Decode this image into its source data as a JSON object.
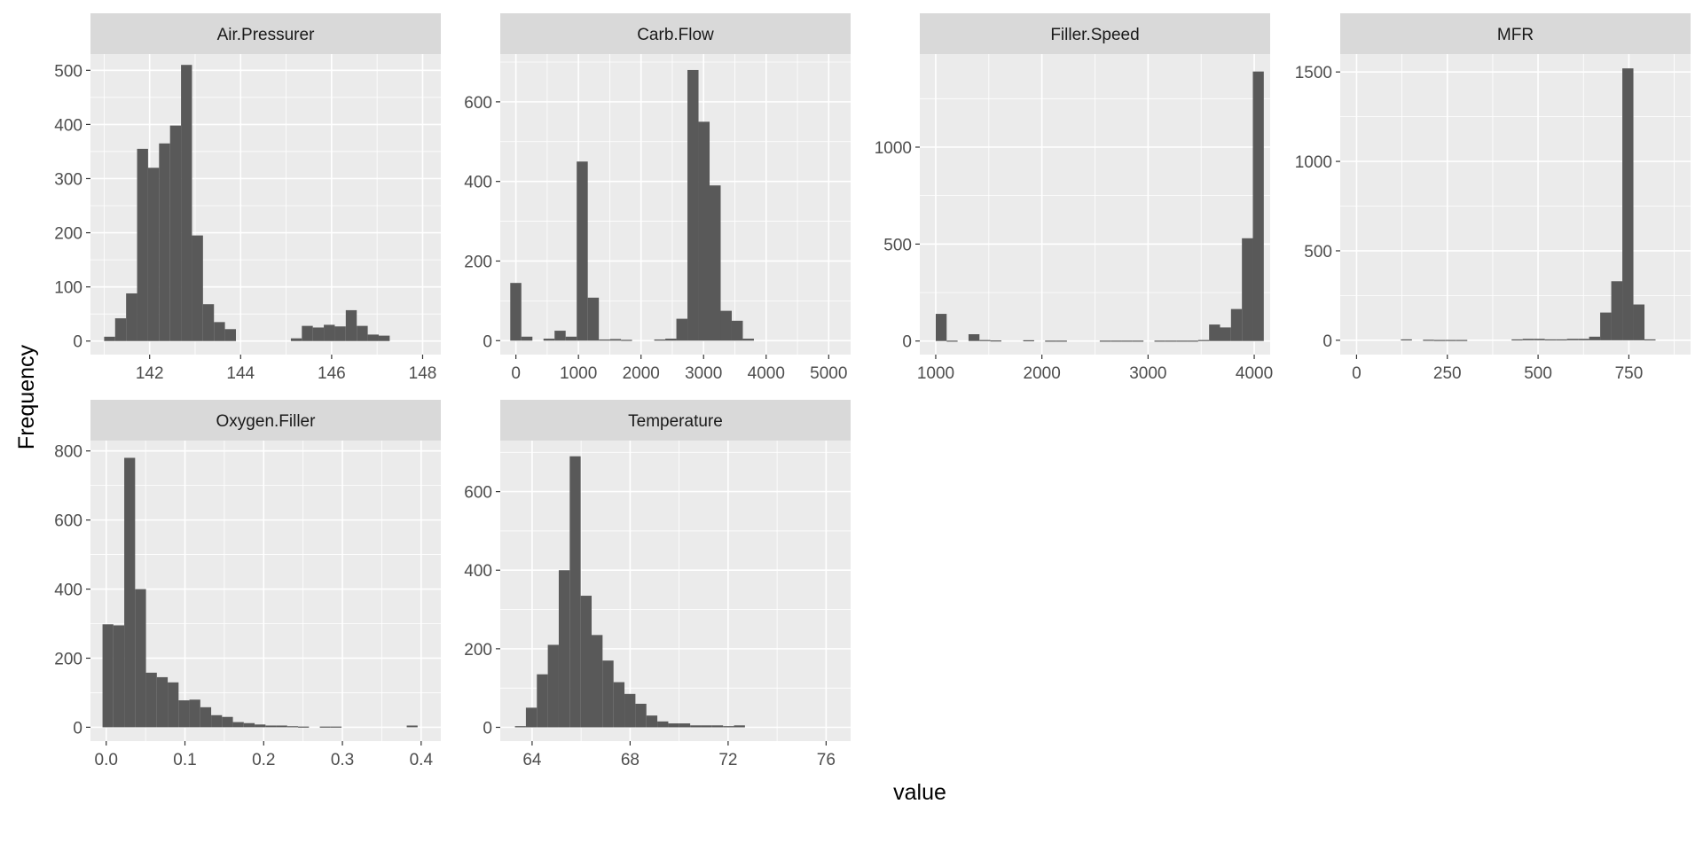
{
  "chart_data": {
    "type": "bar",
    "kind": "faceted-histogram",
    "xlabel": "value",
    "ylabel": "Frequency",
    "colors": {
      "panel_bg": "#ebebeb",
      "strip_bg": "#d9d9d9",
      "grid": "#ffffff",
      "bar": "#595959"
    },
    "facets": [
      {
        "title": "Air.Pressurer",
        "xlim": [
          140.7,
          148.4
        ],
        "ylim": [
          -25,
          530
        ],
        "xticks": [
          142,
          144,
          146,
          148
        ],
        "xtick_labels": [
          "142",
          "144",
          "146",
          "148"
        ],
        "xminor": [
          141,
          143,
          145,
          147
        ],
        "yticks": [
          0,
          100,
          200,
          300,
          400,
          500
        ],
        "ytick_labels": [
          "0",
          "100",
          "200",
          "300",
          "400",
          "500"
        ],
        "yminor": [
          50,
          150,
          250,
          350,
          450
        ],
        "bin_start": 141.0,
        "bin_width": 0.2414,
        "counts": [
          8,
          42,
          88,
          355,
          320,
          365,
          398,
          510,
          195,
          68,
          35,
          22,
          0,
          0,
          0,
          0,
          0,
          5,
          28,
          25,
          30,
          27,
          57,
          28,
          12,
          10
        ]
      },
      {
        "title": "Carb.Flow",
        "xlim": [
          -250,
          5350
        ],
        "ylim": [
          -35,
          720
        ],
        "xticks": [
          0,
          1000,
          2000,
          3000,
          4000,
          5000
        ],
        "xtick_labels": [
          "0",
          "1000",
          "2000",
          "3000",
          "4000",
          "5000"
        ],
        "xminor": [
          500,
          1500,
          2500,
          3500,
          4500
        ],
        "yticks": [
          0,
          200,
          400,
          600
        ],
        "ytick_labels": [
          "0",
          "200",
          "400",
          "600"
        ],
        "yminor": [
          100,
          300,
          500,
          700
        ],
        "bin_start": -90,
        "bin_width": 177,
        "counts": [
          145,
          10,
          0,
          5,
          25,
          10,
          450,
          108,
          3,
          4,
          2,
          0,
          0,
          3,
          5,
          55,
          680,
          550,
          390,
          75,
          50,
          5
        ]
      },
      {
        "title": "Filler.Speed",
        "xlim": [
          850,
          4150
        ],
        "ylim": [
          -70,
          1480
        ],
        "xticks": [
          1000,
          2000,
          3000,
          4000
        ],
        "xtick_labels": [
          "1000",
          "2000",
          "3000",
          "4000"
        ],
        "xminor": [
          1500,
          2500,
          3500
        ],
        "yticks": [
          0,
          500,
          1000
        ],
        "ytick_labels": [
          "0",
          "500",
          "1000"
        ],
        "yminor": [
          250,
          750,
          1250
        ],
        "bin_start": 1000,
        "bin_width": 103,
        "counts": [
          140,
          2,
          0,
          35,
          5,
          3,
          0,
          0,
          4,
          0,
          2,
          2,
          0,
          0,
          0,
          2,
          2,
          2,
          2,
          0,
          2,
          2,
          2,
          2,
          5,
          85,
          70,
          165,
          530,
          1390
        ]
      },
      {
        "title": "MFR",
        "xlim": [
          -45,
          920
        ],
        "ylim": [
          -80,
          1600
        ],
        "xticks": [
          0,
          250,
          500,
          750
        ],
        "xtick_labels": [
          "0",
          "250",
          "500",
          "750"
        ],
        "xminor": [
          125,
          375,
          625,
          875
        ],
        "yticks": [
          0,
          500,
          1000,
          1500
        ],
        "ytick_labels": [
          "0",
          "500",
          "1000",
          "1500"
        ],
        "yminor": [
          250,
          750,
          1250
        ],
        "bin_start": 0,
        "bin_width": 30.5,
        "counts": [
          0,
          0,
          0,
          0,
          5,
          0,
          3,
          2,
          2,
          2,
          0,
          0,
          0,
          0,
          5,
          8,
          8,
          5,
          5,
          8,
          8,
          20,
          155,
          330,
          1520,
          200,
          5
        ]
      },
      {
        "title": "Oxygen.Filler",
        "xlim": [
          -0.02,
          0.425
        ],
        "ylim": [
          -40,
          830
        ],
        "xticks": [
          0.0,
          0.1,
          0.2,
          0.3,
          0.4
        ],
        "xtick_labels": [
          "0.0",
          "0.1",
          "0.2",
          "0.3",
          "0.4"
        ],
        "xminor": [
          0.05,
          0.15,
          0.25,
          0.35
        ],
        "yticks": [
          0,
          200,
          400,
          600,
          800
        ],
        "ytick_labels": [
          "0",
          "200",
          "400",
          "600",
          "800"
        ],
        "yminor": [
          100,
          300,
          500,
          700
        ],
        "bin_start": -0.0047,
        "bin_width": 0.0138,
        "counts": [
          298,
          295,
          780,
          400,
          158,
          145,
          130,
          78,
          80,
          58,
          35,
          30,
          15,
          12,
          8,
          5,
          5,
          3,
          2,
          0,
          2,
          2,
          0,
          0,
          0,
          0,
          0,
          0,
          5
        ]
      },
      {
        "title": "Temperature",
        "xlim": [
          62.7,
          77.0
        ],
        "ylim": [
          -35,
          730
        ],
        "xticks": [
          64,
          68,
          72,
          76
        ],
        "xtick_labels": [
          "64",
          "68",
          "72",
          "76"
        ],
        "xminor": [
          62,
          66,
          70,
          74
        ],
        "yticks": [
          0,
          200,
          400,
          600
        ],
        "ytick_labels": [
          "0",
          "200",
          "400",
          "600"
        ],
        "yminor": [
          100,
          300,
          500,
          700
        ],
        "bin_start": 63.3,
        "bin_width": 0.447,
        "counts": [
          3,
          50,
          135,
          210,
          400,
          690,
          335,
          235,
          170,
          115,
          85,
          60,
          30,
          15,
          10,
          10,
          5,
          5,
          5,
          3,
          5
        ]
      }
    ]
  }
}
